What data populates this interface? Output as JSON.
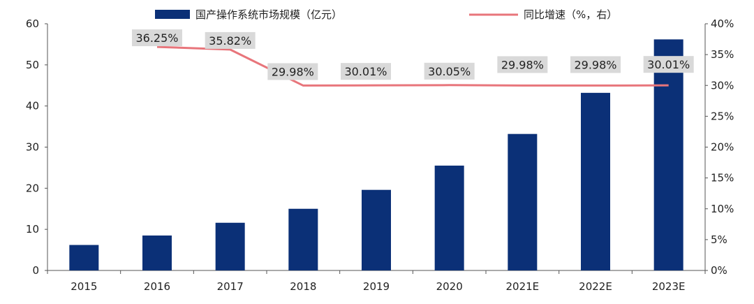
{
  "chart_data": {
    "type": "bar",
    "categories": [
      "2015",
      "2016",
      "2017",
      "2018",
      "2019",
      "2020",
      "2021E",
      "2022E",
      "2023E"
    ],
    "series": [
      {
        "name": "国产操作系统市场规模（亿元）",
        "type": "bar",
        "axis": "left",
        "color": "#0b3077",
        "values": [
          6.2,
          8.5,
          11.6,
          15.0,
          19.6,
          25.5,
          33.2,
          43.2,
          56.2
        ]
      },
      {
        "name": "同比增速（%，右）",
        "type": "line",
        "axis": "right",
        "color": "#e8757b",
        "values": [
          null,
          36.25,
          35.82,
          29.98,
          30.01,
          30.05,
          29.98,
          29.98,
          30.01
        ],
        "labels": [
          "",
          "36.25%",
          "35.82%",
          "29.98%",
          "30.01%",
          "30.05%",
          "29.98%",
          "29.98%",
          "30.01%"
        ]
      }
    ],
    "y_left": {
      "ticks": [
        "0",
        "10",
        "20",
        "30",
        "40",
        "50",
        "60"
      ],
      "ylim": [
        0,
        60
      ]
    },
    "y_right": {
      "ticks": [
        "0%",
        "5%",
        "10%",
        "15%",
        "20%",
        "25%",
        "30%",
        "35%",
        "40%"
      ],
      "ylim": [
        0,
        40
      ]
    },
    "legend_position": "top",
    "grid": false
  }
}
